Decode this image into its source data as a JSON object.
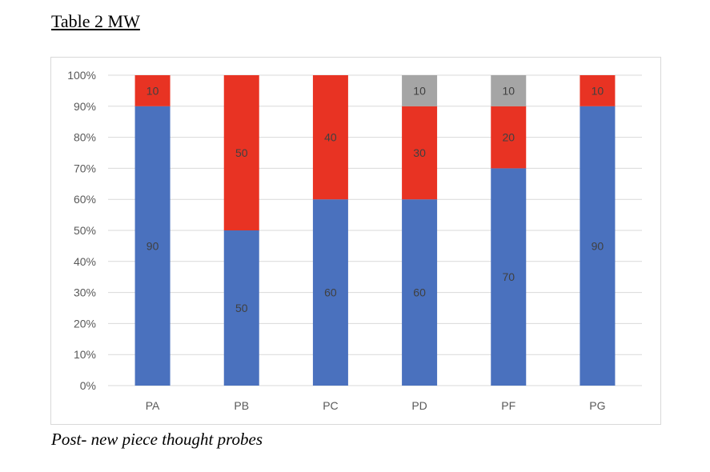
{
  "title": "Table 2 MW",
  "caption": "Post- new piece thought probes",
  "chart_data": {
    "type": "bar",
    "stacked": "percent",
    "categories": [
      "PA",
      "PB",
      "PC",
      "PD",
      "PF",
      "PG"
    ],
    "series": [
      {
        "values": [
          90,
          50,
          60,
          60,
          70,
          90
        ],
        "color": "#4A71BE"
      },
      {
        "values": [
          10,
          50,
          40,
          30,
          20,
          10
        ],
        "color": "#E83323"
      },
      {
        "values": [
          0,
          0,
          0,
          10,
          10,
          0
        ],
        "color": "#A5A5A5"
      }
    ],
    "ylim": [
      0,
      100
    ],
    "yticks": [
      "0%",
      "10%",
      "20%",
      "30%",
      "40%",
      "50%",
      "60%",
      "70%",
      "80%",
      "90%",
      "100%"
    ],
    "grid": true,
    "legend": "none"
  }
}
